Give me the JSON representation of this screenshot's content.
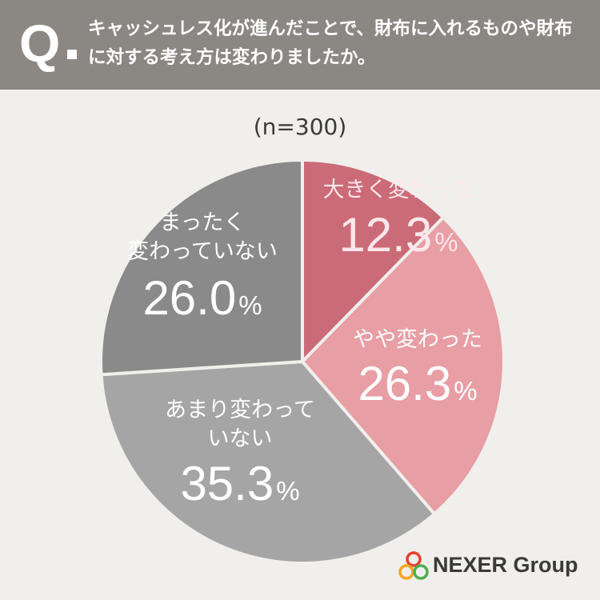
{
  "header": {
    "q_label": "Q",
    "question": "キャッシュレス化が進んだことで、財布に入れるものや財布に対する考え方は変わりましたか。"
  },
  "chart_data": {
    "type": "pie",
    "title": "",
    "sample_size_label": "(n=300)",
    "slices": [
      {
        "label": "大きく変わった",
        "label_lines": [
          "大きく変わった"
        ],
        "value": 12.3,
        "value_label": "12.3",
        "color": "#cc6b78",
        "label_color": "#fde7ea"
      },
      {
        "label": "やや変わった",
        "label_lines": [
          "やや変わった"
        ],
        "value": 26.3,
        "value_label": "26.3",
        "color": "#e89ea5",
        "label_color": "#ffffff"
      },
      {
        "label": "あまり変わっていない",
        "label_lines": [
          "あまり変わって",
          "いない"
        ],
        "value": 35.3,
        "value_label": "35.3",
        "color": "#a5a5a5",
        "label_color": "#ffffff"
      },
      {
        "label": "まったく変わっていない",
        "label_lines": [
          "まったく",
          "変わっていない"
        ],
        "value": 26.0,
        "value_label": "26.0",
        "color": "#8a8a8a",
        "label_color": "#ffffff"
      }
    ],
    "percent_symbol": "%",
    "separator_color": "#f0efec"
  },
  "logo": {
    "text": "NEXER Group",
    "colors": [
      "#e8412c",
      "#f5a623",
      "#4caf50"
    ]
  }
}
